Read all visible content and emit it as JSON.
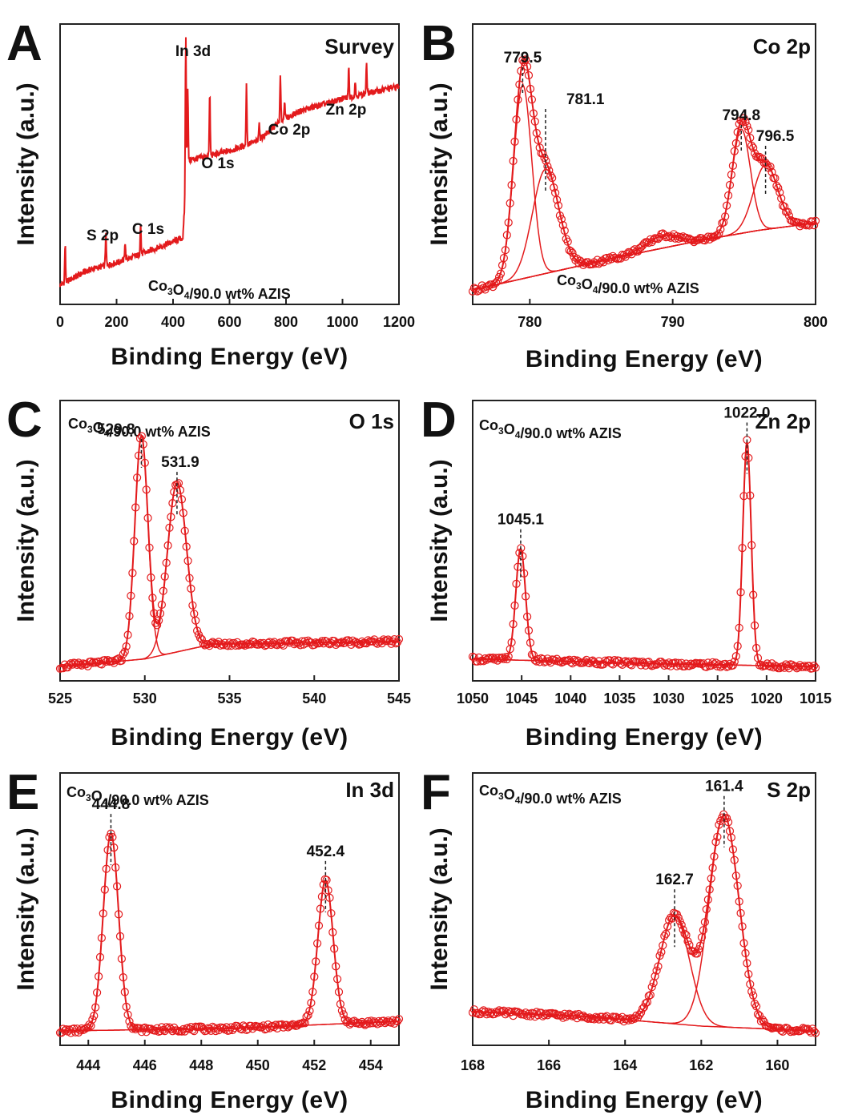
{
  "figure": {
    "sample_label": {
      "prefix": "Co",
      "sub1": "3",
      "mid": "O",
      "sub2": "4",
      "suffix": "/90.0 wt% AZIS"
    },
    "y_axis_label": "Intensity (a.u.)",
    "x_axis_label": "Binding Energy (eV)",
    "colors": {
      "data": "#e31a1c",
      "axis": "#222222",
      "dashed": "#222222"
    }
  },
  "chart_data": [
    {
      "id": "A",
      "type": "line",
      "panel_letter": "A",
      "title": "Survey",
      "xlabel": "Binding Energy (eV)",
      "ylabel": "Intensity (a.u.)",
      "xlim": [
        0,
        1200
      ],
      "x_reversed": false,
      "xticks": [
        0,
        200,
        400,
        600,
        800,
        1000,
        1200
      ],
      "xtick_labels": [
        "0",
        "200",
        "400",
        "600",
        "800",
        "1000",
        "1200"
      ],
      "annotations": [
        {
          "text": "S 2p",
          "x": 162
        },
        {
          "text": "C 1s",
          "x": 285
        },
        {
          "text": "O 1s",
          "x": 530
        },
        {
          "text": "In 3d",
          "x": 445
        },
        {
          "text": "Co 2p",
          "x": 780
        },
        {
          "text": "Zn 2p",
          "x": 1022
        }
      ],
      "baseline_points": {
        "x": [
          0,
          100,
          200,
          300,
          435,
          450,
          600,
          700,
          780,
          850,
          1000,
          1200
        ],
        "y": [
          0.02,
          0.08,
          0.11,
          0.15,
          0.21,
          0.52,
          0.56,
          0.6,
          0.68,
          0.72,
          0.77,
          0.82
        ]
      },
      "peaks": [
        {
          "x": 18,
          "h": 0.15
        },
        {
          "x": 162,
          "h": 0.13
        },
        {
          "x": 230,
          "h": 0.07
        },
        {
          "x": 285,
          "h": 0.12
        },
        {
          "x": 445,
          "h": 0.6
        },
        {
          "x": 452,
          "h": 0.3
        },
        {
          "x": 530,
          "h": 0.25
        },
        {
          "x": 660,
          "h": 0.25
        },
        {
          "x": 705,
          "h": 0.08
        },
        {
          "x": 780,
          "h": 0.18
        },
        {
          "x": 795,
          "h": 0.08
        },
        {
          "x": 1022,
          "h": 0.12
        },
        {
          "x": 1045,
          "h": 0.06
        },
        {
          "x": 1085,
          "h": 0.12
        }
      ]
    },
    {
      "id": "B",
      "type": "line",
      "panel_letter": "B",
      "title": "Co 2p",
      "xlabel": "Binding Energy (eV)",
      "ylabel": "Intensity (a.u.)",
      "xlim": [
        776,
        800
      ],
      "x_reversed": false,
      "xticks": [
        780,
        790,
        800
      ],
      "xtick_labels": [
        "780",
        "790",
        "800"
      ],
      "background": {
        "x": [
          776,
          786,
          792,
          796,
          800
        ],
        "y": [
          0.0,
          0.13,
          0.2,
          0.24,
          0.27
        ]
      },
      "components": [
        {
          "center": 779.5,
          "height": 0.78,
          "width": 0.9
        },
        {
          "center": 781.1,
          "height": 0.42,
          "width": 1.3
        },
        {
          "center": 789.3,
          "height": 0.05,
          "width": 1.6
        },
        {
          "center": 794.8,
          "height": 0.42,
          "width": 0.9
        },
        {
          "center": 796.5,
          "height": 0.26,
          "width": 1.2
        }
      ],
      "annotations": [
        {
          "text": "779.5",
          "x": 779.5
        },
        {
          "text": "781.1",
          "x": 781.1
        },
        {
          "text": "794.8",
          "x": 794.8
        },
        {
          "text": "796.5",
          "x": 796.5
        }
      ]
    },
    {
      "id": "C",
      "type": "line",
      "panel_letter": "C",
      "title": "O 1s",
      "xlabel": "Binding Energy (eV)",
      "ylabel": "Intensity (a.u.)",
      "xlim": [
        525,
        545
      ],
      "x_reversed": false,
      "xticks": [
        525,
        530,
        535,
        540,
        545
      ],
      "xtick_labels": [
        "525",
        "530",
        "535",
        "540",
        "545"
      ],
      "background": {
        "x": [
          525,
          530,
          534,
          545
        ],
        "y": [
          0.0,
          0.03,
          0.09,
          0.1
        ]
      },
      "components": [
        {
          "center": 529.8,
          "height": 0.9,
          "width": 0.55
        },
        {
          "center": 531.9,
          "height": 0.68,
          "width": 0.8
        }
      ],
      "annotations": [
        {
          "text": "529.8",
          "x": 529.8
        },
        {
          "text": "531.9",
          "x": 531.9
        }
      ]
    },
    {
      "id": "D",
      "type": "line",
      "panel_letter": "D",
      "title": "Zn 2p",
      "xlabel": "Binding Energy (eV)",
      "ylabel": "Intensity (a.u.)",
      "xlim": [
        1050,
        1015
      ],
      "x_reversed": true,
      "xticks": [
        1050,
        1045,
        1040,
        1035,
        1030,
        1025,
        1020,
        1015
      ],
      "xtick_labels": [
        "1050",
        "1045",
        "1040",
        "1035",
        "1030",
        "1025",
        "1020",
        "1015"
      ],
      "background": {
        "x": [
          1050,
          1040,
          1030,
          1015
        ],
        "y": [
          0.03,
          0.02,
          0.01,
          0.0
        ]
      },
      "components": [
        {
          "center": 1045.1,
          "height": 0.45,
          "width": 0.7
        },
        {
          "center": 1022.0,
          "height": 0.9,
          "width": 0.6
        }
      ],
      "annotations": [
        {
          "text": "1045.1",
          "x": 1045.1
        },
        {
          "text": "1022.0",
          "x": 1022.0
        }
      ]
    },
    {
      "id": "E",
      "type": "line",
      "panel_letter": "E",
      "title": "In 3d",
      "xlabel": "Binding Energy (eV)",
      "ylabel": "Intensity (a.u.)",
      "xlim": [
        443,
        455
      ],
      "x_reversed": false,
      "xticks": [
        444,
        446,
        448,
        450,
        452,
        454
      ],
      "xtick_labels": [
        "444",
        "446",
        "448",
        "450",
        "452",
        "454"
      ],
      "background": {
        "x": [
          443,
          449,
          455
        ],
        "y": [
          0.0,
          0.01,
          0.04
        ]
      },
      "components": [
        {
          "center": 444.8,
          "height": 0.82,
          "width": 0.38
        },
        {
          "center": 452.4,
          "height": 0.6,
          "width": 0.38
        }
      ],
      "annotations": [
        {
          "text": "444.8",
          "x": 444.8
        },
        {
          "text": "452.4",
          "x": 452.4
        }
      ]
    },
    {
      "id": "F",
      "type": "line",
      "panel_letter": "F",
      "title": "S 2p",
      "xlabel": "Binding Energy (eV)",
      "ylabel": "Intensity (a.u.)",
      "xlim": [
        168,
        159
      ],
      "x_reversed": true,
      "xticks": [
        168,
        166,
        164,
        162,
        160
      ],
      "xtick_labels": [
        "168",
        "166",
        "164",
        "162",
        "160"
      ],
      "background": {
        "x": [
          168,
          165,
          162,
          159
        ],
        "y": [
          0.08,
          0.06,
          0.02,
          0.0
        ]
      },
      "components": [
        {
          "center": 162.7,
          "height": 0.45,
          "width": 0.55
        },
        {
          "center": 161.4,
          "height": 0.88,
          "width": 0.55
        }
      ],
      "annotations": [
        {
          "text": "162.7",
          "x": 162.7
        },
        {
          "text": "161.4",
          "x": 161.4
        }
      ]
    }
  ]
}
